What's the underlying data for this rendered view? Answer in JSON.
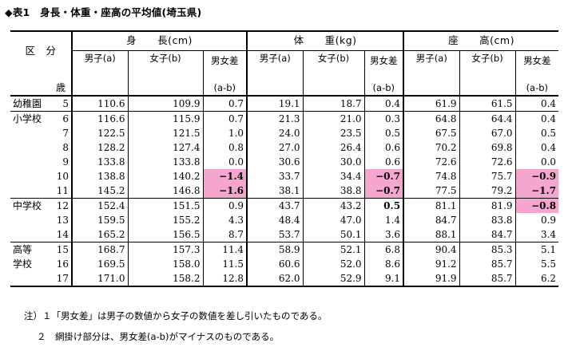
{
  "title": "◆表1　身長・体重・座高の平均値(埼玉県)",
  "header": {
    "kubun": "区　分",
    "sai": "歳",
    "groups": [
      "身　　長(cm)",
      "体　　重(kg)",
      "座　　高(cm)"
    ],
    "sub": [
      "男子(a)",
      "女子(b)",
      "男女差"
    ],
    "diff_formula": "(a-b)"
  },
  "rows": [
    {
      "school": "幼稚園",
      "age": "5",
      "h": [
        "110.6",
        "109.9",
        "0.7"
      ],
      "w": [
        "19.1",
        "18.7",
        "0.4"
      ],
      "s": [
        "61.9",
        "61.5",
        "0.4"
      ]
    },
    {
      "school": "小学校",
      "age": "6",
      "h": [
        "116.6",
        "115.9",
        "0.7"
      ],
      "w": [
        "21.3",
        "21.0",
        "0.3"
      ],
      "s": [
        "64.8",
        "64.4",
        "0.4"
      ]
    },
    {
      "school": "",
      "age": "7",
      "h": [
        "122.5",
        "121.5",
        "1.0"
      ],
      "w": [
        "24.0",
        "23.5",
        "0.5"
      ],
      "s": [
        "67.5",
        "67.0",
        "0.5"
      ]
    },
    {
      "school": "",
      "age": "8",
      "h": [
        "128.2",
        "127.4",
        "0.8"
      ],
      "w": [
        "27.0",
        "26.4",
        "0.6"
      ],
      "s": [
        "70.2",
        "69.8",
        "0.4"
      ]
    },
    {
      "school": "",
      "age": "9",
      "h": [
        "133.8",
        "133.8",
        "0.0"
      ],
      "w": [
        "30.6",
        "30.0",
        "0.6"
      ],
      "s": [
        "72.6",
        "72.6",
        "0.0"
      ]
    },
    {
      "school": "",
      "age": "10",
      "h": [
        "138.8",
        "140.2",
        "−1.4"
      ],
      "w": [
        "33.7",
        "34.4",
        "−0.7"
      ],
      "s": [
        "74.8",
        "75.7",
        "−0.9"
      ]
    },
    {
      "school": "",
      "age": "11",
      "h": [
        "145.2",
        "146.8",
        "−1.6"
      ],
      "w": [
        "38.1",
        "38.8",
        "−0.7"
      ],
      "s": [
        "77.5",
        "79.2",
        "−1.7"
      ]
    },
    {
      "school": "中学校",
      "age": "12",
      "h": [
        "152.4",
        "151.5",
        "0.9"
      ],
      "w": [
        "43.7",
        "43.2",
        "0.5"
      ],
      "s": [
        "81.1",
        "81.9",
        "−0.8"
      ]
    },
    {
      "school": "",
      "age": "13",
      "h": [
        "159.5",
        "155.2",
        "4.3"
      ],
      "w": [
        "48.4",
        "47.0",
        "1.4"
      ],
      "s": [
        "84.7",
        "83.8",
        "0.9"
      ]
    },
    {
      "school": "",
      "age": "14",
      "h": [
        "165.2",
        "156.5",
        "8.7"
      ],
      "w": [
        "53.7",
        "50.1",
        "3.6"
      ],
      "s": [
        "88.1",
        "84.7",
        "3.4"
      ]
    },
    {
      "school": "高等",
      "age": "15",
      "h": [
        "168.7",
        "157.3",
        "11.4"
      ],
      "w": [
        "58.9",
        "52.1",
        "6.8"
      ],
      "s": [
        "90.4",
        "85.3",
        "5.1"
      ]
    },
    {
      "school": "学校",
      "age": "16",
      "h": [
        "169.5",
        "158.0",
        "11.5"
      ],
      "w": [
        "60.6",
        "52.0",
        "8.6"
      ],
      "s": [
        "91.2",
        "85.7",
        "5.5"
      ]
    },
    {
      "school": "",
      "age": "17",
      "h": [
        "171.0",
        "158.2",
        "12.8"
      ],
      "w": [
        "62.0",
        "52.9",
        "9.1"
      ],
      "s": [
        "91.9",
        "85.7",
        "6.2"
      ]
    }
  ],
  "notes": [
    "注）１「男女差」は男子の数値から女子の数値を差し引いたものである。",
    "２　網掛け部分は、男女差(a-b)がマイナスのものである。"
  ],
  "colors": {
    "negative_highlight": "#f4a6cf"
  }
}
